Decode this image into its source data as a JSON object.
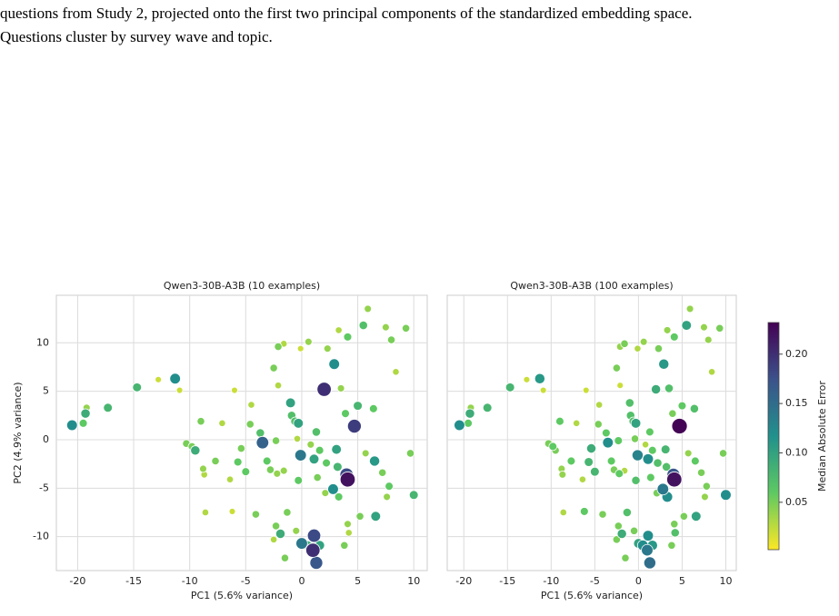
{
  "caption": [
    "questions from Study 2, projected onto the first two principal components of the standardized embedding space.",
    "Questions cluster by survey wave and topic."
  ],
  "colorbar": {
    "label": "Median Absolute Error",
    "cmap": "viridis_r",
    "lim": [
      0.002,
      0.232
    ],
    "ticks": [
      0.05,
      {
        "value": 0.1,
        "label": "0.10"
      },
      0.15,
      {
        "value": 0.2,
        "label": "0.20"
      }
    ]
  },
  "chart_data": [
    {
      "type": "scatter",
      "title": "Qwen3-30B-A3B (10 examples)",
      "x_label": "PC1 (5.6% variance)",
      "y_label": "PC2 (4.9% variance)",
      "xlim": [
        -21.9,
        11.2
      ],
      "ylim": [
        -13.5,
        14.9
      ],
      "xticks": [
        -20,
        -15,
        -10,
        -5,
        0,
        5,
        10
      ],
      "yticks": [
        -10,
        -5,
        0,
        5,
        10
      ],
      "ytick_labels": true,
      "grid": true,
      "x": [
        -20.5,
        -19.3,
        -19.5,
        -19.2,
        -17.3,
        -14.7,
        -12.8,
        -11.3,
        -10.9,
        -10.3,
        -9.8,
        -9.5,
        -9,
        -8.8,
        -8.7,
        -8.6,
        -7.7,
        -7.1,
        -6.4,
        -6.2,
        -6,
        -5.7,
        -5.4,
        -5,
        -4.6,
        -4.5,
        -4.1,
        -3.7,
        -3.5,
        -3.1,
        -2.8,
        -2.5,
        -2.3,
        -2.5,
        -2.1,
        -2.3,
        -2.2,
        -1.6,
        -1.3,
        -1.9,
        -1.5,
        -2.1,
        -1.6,
        -1,
        -0.9,
        -0.6,
        -0.3,
        -0.1,
        -0.3,
        0,
        -0.5,
        0.5,
        1.1,
        1,
        1.3,
        1.6,
        2,
        1.3,
        1.1,
        1.4,
        2.1,
        2.9,
        2.8,
        3.1,
        3.2,
        3.3,
        3.5,
        3.9,
        4,
        4.1,
        4.7,
        4.1,
        4.2,
        3.8,
        5,
        5.5,
        5.2,
        5.7,
        6.5,
        6.6,
        7.6,
        7.8,
        8.4,
        9.3,
        9.7,
        10,
        6.4,
        7.2,
        5.9,
        3.3,
        2.3,
        0.6,
        -0.1,
        4.1,
        7.5,
        8,
        1.6,
        2.2,
        -0.4,
        0.8
      ],
      "y": [
        1.5,
        2.7,
        1.7,
        3.3,
        3.3,
        5.4,
        6.2,
        6.3,
        5.1,
        -0.4,
        -0.7,
        -1.1,
        1.9,
        -3,
        -3.6,
        -7.5,
        -2.2,
        1.7,
        -4.1,
        -7.4,
        5.1,
        -2.3,
        -0.9,
        -3.3,
        1.6,
        3.6,
        -7.7,
        0.7,
        -0.3,
        -2.2,
        -3.1,
        -10.3,
        -8.9,
        7.4,
        5.6,
        -0.1,
        -3.5,
        -3.2,
        -7.5,
        -9.7,
        -12.2,
        9.6,
        9.9,
        3.8,
        2.5,
        1.9,
        1.7,
        -1.6,
        -4.2,
        -10.7,
        -9.4,
        -10.9,
        -9.9,
        -11.4,
        -12.7,
        -10.9,
        5.2,
        0.8,
        -2,
        -3.9,
        -5.5,
        7.8,
        -5.1,
        -1,
        -2.8,
        -5.9,
        5.3,
        2.7,
        -3.6,
        -4.1,
        1.4,
        -8.7,
        -9.6,
        -10.9,
        3.5,
        11.8,
        -7.9,
        -1.4,
        -2.2,
        -7.9,
        -5.9,
        -4.8,
        7,
        11.5,
        -1.4,
        -5.7,
        3.2,
        -3.4,
        13.5,
        11.3,
        9.4,
        10.1,
        9.4,
        10.6,
        11.6,
        10.3,
        -1.1,
        -2.4,
        0.1,
        -0.5
      ],
      "values": [
        0.12,
        0.09,
        0.06,
        0.04,
        0.08,
        0.08,
        0.02,
        0.12,
        0.02,
        0.05,
        0.05,
        0.09,
        0.05,
        0.04,
        0.03,
        0.03,
        0.05,
        0.03,
        0.03,
        0.02,
        0.02,
        0.06,
        0.05,
        0.06,
        0.05,
        0.03,
        0.05,
        0.07,
        0.16,
        0.06,
        0.05,
        0.03,
        0.05,
        0.05,
        0.03,
        0.05,
        0.04,
        0.04,
        0.05,
        0.09,
        0.05,
        0.05,
        0.03,
        0.1,
        0.07,
        0.07,
        0.1,
        0.14,
        0.06,
        0.14,
        0.04,
        0.09,
        0.18,
        0.2,
        0.17,
        0.1,
        0.2,
        0.07,
        0.1,
        0.05,
        0.04,
        0.12,
        0.12,
        0.1,
        0.08,
        0.06,
        0.04,
        0.06,
        0.18,
        0.22,
        0.19,
        0.04,
        0.03,
        0.05,
        0.08,
        0.07,
        0.05,
        0.04,
        0.11,
        0.1,
        0.04,
        0.06,
        0.03,
        0.05,
        0.05,
        0.08,
        0.06,
        0.05,
        0.04,
        0.03,
        0.04,
        0.04,
        0.02,
        0.06,
        0.04,
        0.05,
        0.06,
        0.06,
        0.03,
        0.04
      ]
    },
    {
      "type": "scatter",
      "title": "Qwen3-30B-A3B (100 examples)",
      "x_label": "PC1 (5.6% variance)",
      "xlim": [
        -21.9,
        11.2
      ],
      "ylim": [
        -13.5,
        14.9
      ],
      "xticks": [
        -20,
        -15,
        -10,
        -5,
        0,
        5,
        10
      ],
      "yticks": [
        -10,
        -5,
        0,
        5,
        10
      ],
      "ytick_labels": false,
      "grid": true,
      "x": [
        -20.5,
        -19.3,
        -19.5,
        -19.2,
        -17.3,
        -14.7,
        -12.8,
        -11.3,
        -10.9,
        -10.3,
        -9.8,
        -9.5,
        -9,
        -8.8,
        -8.7,
        -8.6,
        -7.7,
        -7.1,
        -6.4,
        -6.2,
        -6,
        -5.7,
        -5.4,
        -5,
        -4.6,
        -4.5,
        -4.1,
        -3.7,
        -3.5,
        -3.1,
        -2.8,
        -2.5,
        -2.3,
        -2.5,
        -2.1,
        -2.3,
        -2.2,
        -1.6,
        -1.3,
        -1.9,
        -1.5,
        -2.1,
        -1.6,
        -1,
        -0.9,
        -0.6,
        -0.3,
        -0.1,
        -0.3,
        0,
        -0.5,
        0.5,
        1.1,
        1,
        1.3,
        1.6,
        2,
        1.3,
        1.1,
        1.4,
        2.1,
        2.9,
        2.8,
        3.1,
        3.2,
        3.3,
        3.5,
        3.9,
        4,
        4.1,
        4.7,
        4.1,
        4.2,
        3.8,
        5,
        5.5,
        5.2,
        5.7,
        6.5,
        6.6,
        7.6,
        7.8,
        8.4,
        9.3,
        9.7,
        10,
        6.4,
        7.2,
        5.9,
        3.3,
        2.3,
        0.6,
        -0.1,
        4.1,
        7.5,
        8,
        1.6,
        2.2,
        -0.4,
        0.8
      ],
      "y": [
        1.5,
        2.7,
        1.7,
        3.3,
        3.3,
        5.4,
        6.2,
        6.3,
        5.1,
        -0.4,
        -0.7,
        -1.1,
        1.9,
        -3,
        -3.6,
        -7.5,
        -2.2,
        1.7,
        -4.1,
        -7.4,
        5.1,
        -2.3,
        -0.9,
        -3.3,
        1.6,
        3.6,
        -7.7,
        0.7,
        -0.3,
        -2.2,
        -3.1,
        -10.3,
        -8.9,
        7.4,
        5.6,
        -0.1,
        -3.5,
        -3.2,
        -7.5,
        -9.7,
        -12.2,
        9.6,
        9.9,
        3.8,
        2.5,
        1.9,
        1.7,
        -1.6,
        -4.2,
        -10.7,
        -9.4,
        -10.9,
        -9.9,
        -11.4,
        -12.7,
        -10.9,
        5.2,
        0.8,
        -2,
        -3.9,
        -5.5,
        7.8,
        -5.1,
        -1,
        -2.8,
        -5.9,
        5.3,
        2.7,
        -3.6,
        -4.1,
        1.4,
        -8.7,
        -9.6,
        -10.9,
        3.5,
        11.8,
        -7.9,
        -1.4,
        -2.2,
        -7.9,
        -5.9,
        -4.8,
        7,
        11.5,
        -1.4,
        -5.7,
        3.2,
        -3.4,
        13.5,
        11.3,
        9.4,
        10.1,
        9.4,
        10.6,
        11.6,
        10.3,
        -1.1,
        -2.4,
        0.1,
        -0.5
      ],
      "values": [
        0.12,
        0.09,
        0.06,
        0.04,
        0.08,
        0.08,
        0.02,
        0.11,
        0.02,
        0.05,
        0.06,
        0.05,
        0.06,
        0.04,
        0.04,
        0.03,
        0.06,
        0.03,
        0.03,
        0.06,
        0.02,
        0.08,
        0.09,
        0.08,
        0.05,
        0.03,
        0.05,
        0.06,
        0.12,
        0.06,
        0.05,
        0.05,
        0.05,
        0.05,
        0.02,
        0.06,
        0.06,
        0.03,
        0.07,
        0.09,
        0.05,
        0.04,
        0.05,
        0.07,
        0.07,
        0.07,
        0.1,
        0.13,
        0.07,
        0.1,
        0.05,
        0.12,
        0.12,
        0.14,
        0.15,
        0.11,
        0.09,
        0.06,
        0.12,
        0.06,
        0.05,
        0.11,
        0.14,
        0.08,
        0.07,
        0.12,
        0.07,
        0.05,
        0.17,
        0.22,
        0.23,
        0.05,
        0.07,
        0.05,
        0.06,
        0.1,
        0.05,
        0.04,
        0.06,
        0.1,
        0.04,
        0.05,
        0.03,
        0.05,
        0.05,
        0.12,
        0.07,
        0.05,
        0.04,
        0.04,
        0.05,
        0.04,
        0.03,
        0.06,
        0.04,
        0.04,
        0.06,
        0.07,
        0.05,
        0.03
      ]
    }
  ]
}
